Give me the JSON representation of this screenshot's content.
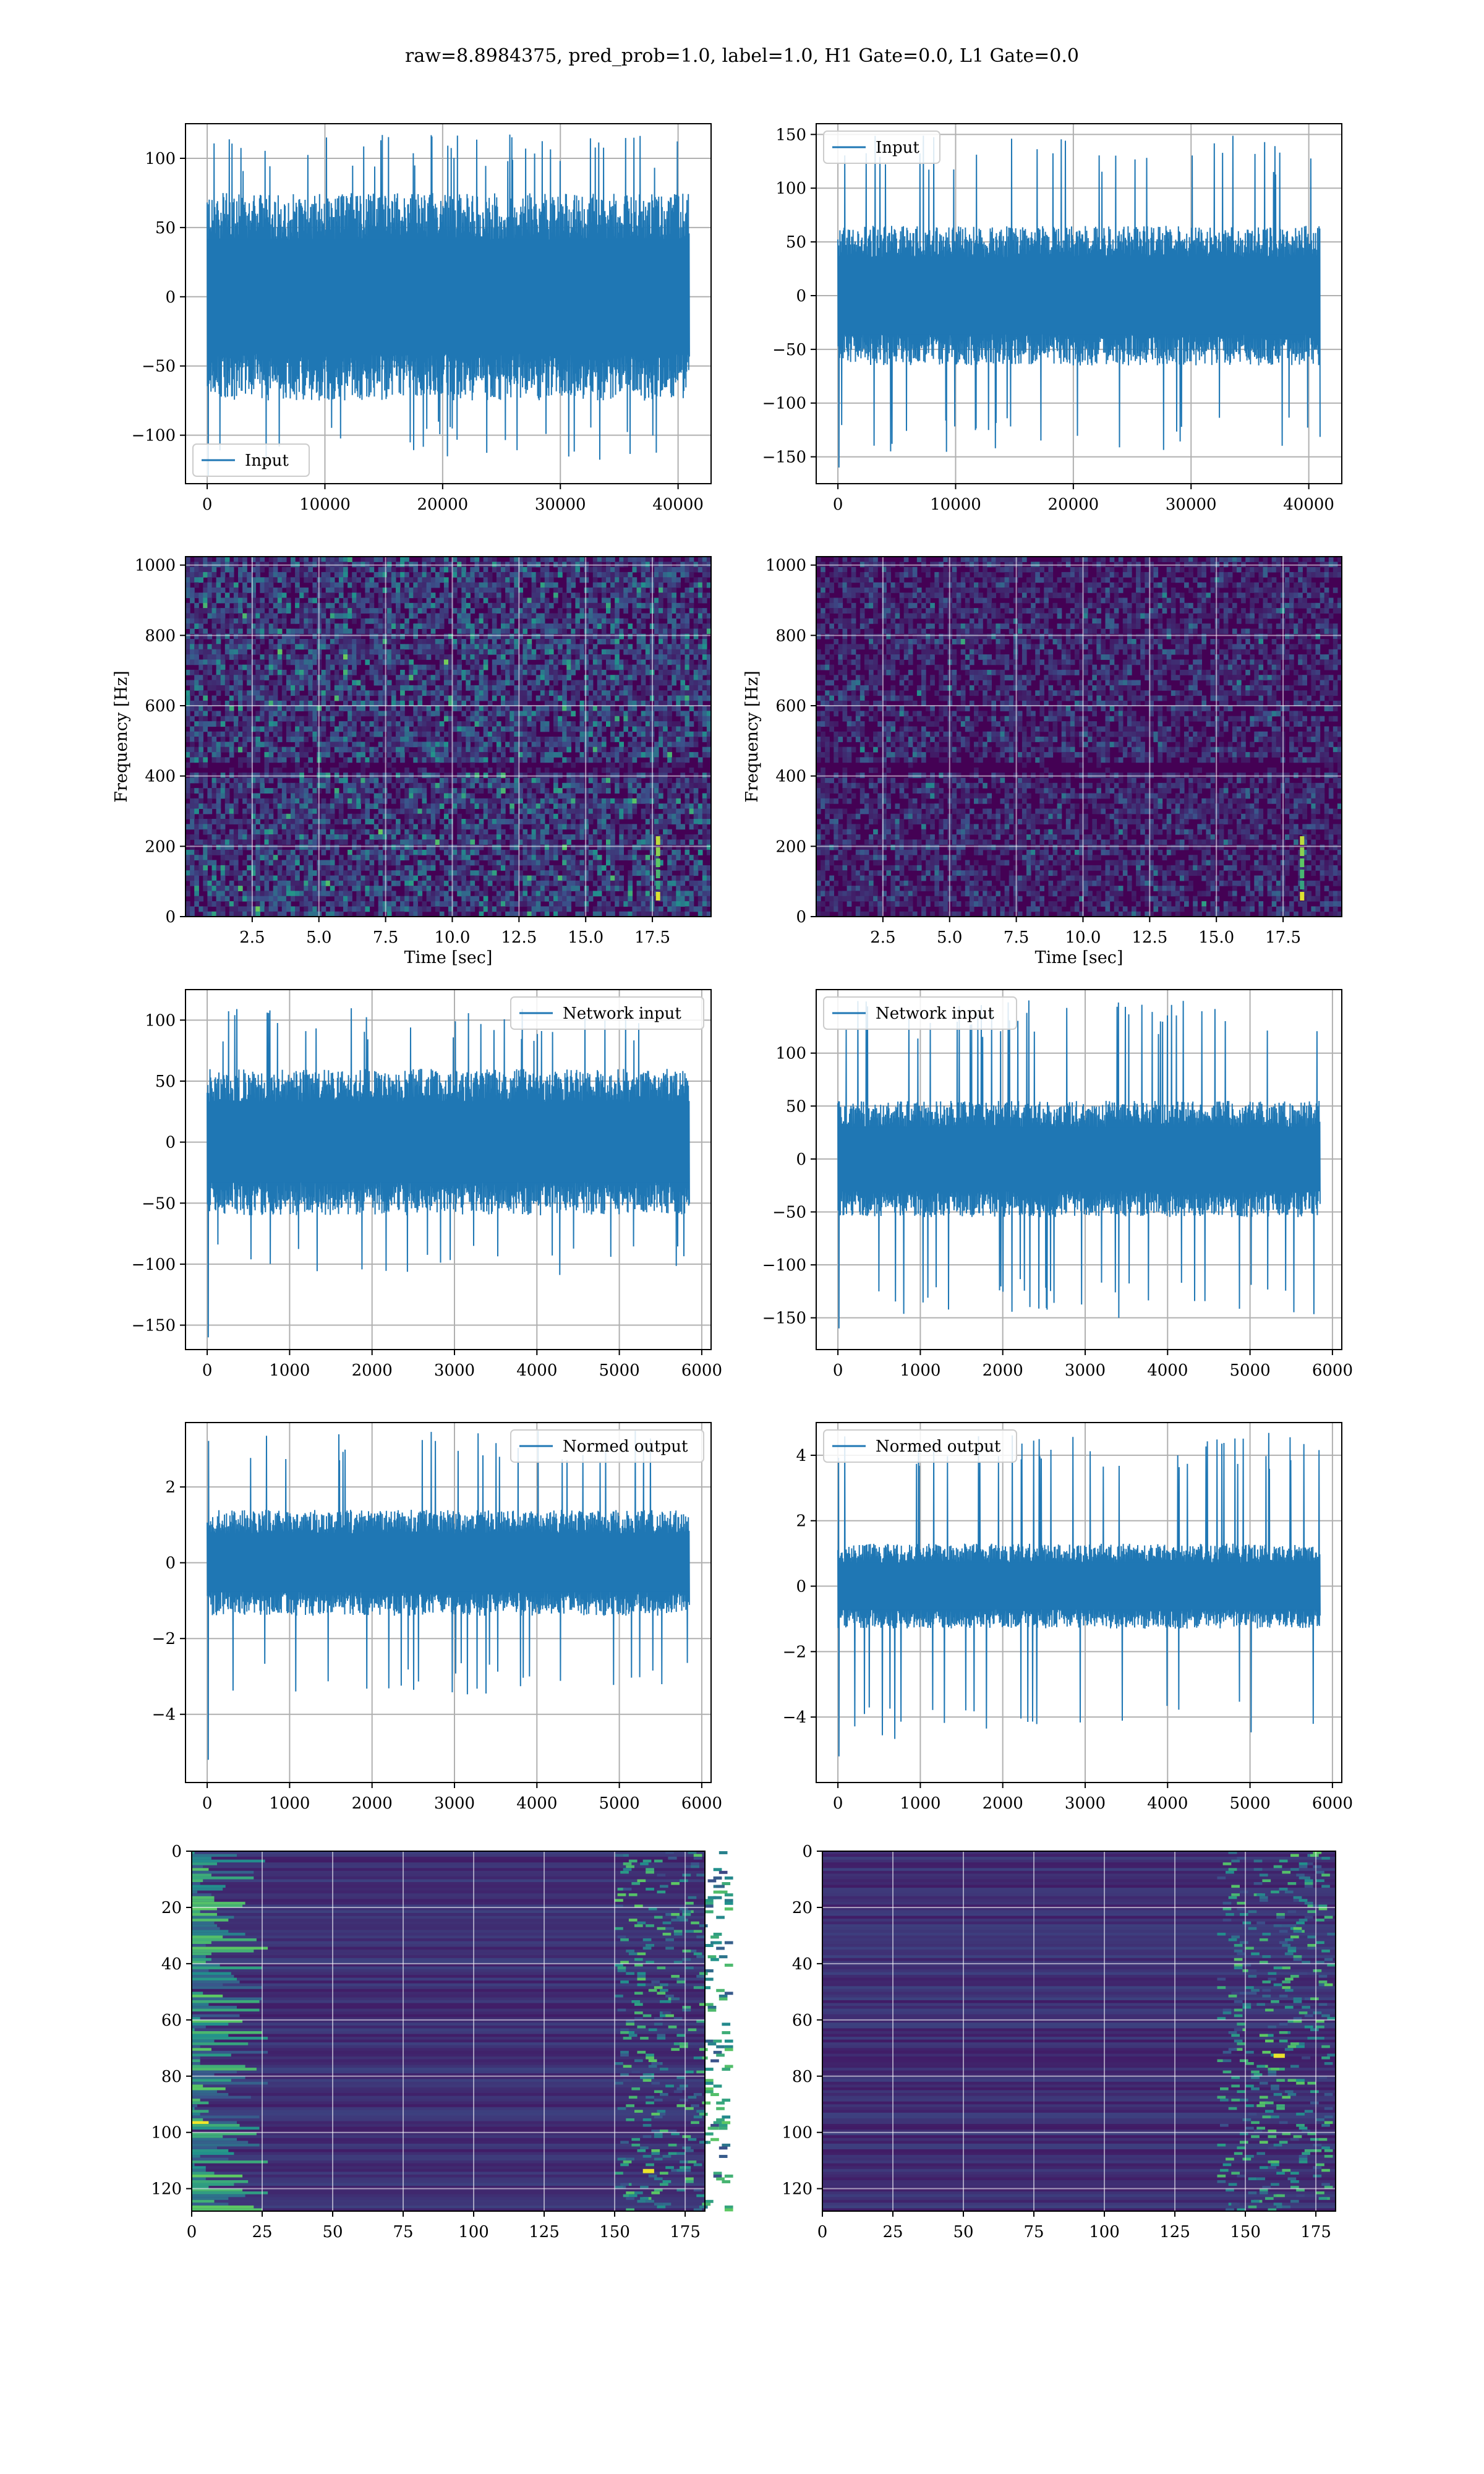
{
  "figure": {
    "title": "raw=8.8984375, pred_prob=1.0, label=1.0, H1 Gate=0.0, L1 Gate=0.0"
  },
  "colors": {
    "series": "#1f77b4",
    "viridis": [
      "#440154",
      "#3b528b",
      "#21918c",
      "#5ec962",
      "#fde725"
    ]
  },
  "chart_data": [
    {
      "id": "row1-left",
      "type": "line",
      "legend": "Input",
      "legend_loc": "lower-left",
      "x_range": [
        0,
        40960
      ],
      "ylim": [
        -135,
        125
      ],
      "xticks": [
        0,
        10000,
        20000,
        30000,
        40000
      ],
      "xtick_labels": [
        "0",
        "10000",
        "20000",
        "30000",
        "40000"
      ],
      "yticks": [
        -100,
        -50,
        0,
        50,
        100
      ],
      "ytick_labels": [
        "−100",
        "−50",
        "0",
        "50",
        "100"
      ],
      "envelope_core": 75,
      "envelope_spike": 120,
      "envelope_min": -130,
      "xlabel": "",
      "ylabel": "",
      "grid": true
    },
    {
      "id": "row1-right",
      "type": "line",
      "legend": "Input",
      "legend_loc": "upper-left",
      "x_range": [
        0,
        40960
      ],
      "ylim": [
        -175,
        160
      ],
      "xticks": [
        0,
        10000,
        20000,
        30000,
        40000
      ],
      "xtick_labels": [
        "0",
        "10000",
        "20000",
        "30000",
        "40000"
      ],
      "yticks": [
        -150,
        -100,
        -50,
        0,
        50,
        100,
        150
      ],
      "ytick_labels": [
        "−150",
        "−100",
        "−50",
        "0",
        "50",
        "100",
        "150"
      ],
      "envelope_core": 65,
      "envelope_spike": 150,
      "envelope_min": -160,
      "xlabel": "",
      "ylabel": "",
      "grid": true
    },
    {
      "id": "row2-left",
      "type": "heatmap",
      "xlim": [
        0,
        19.7
      ],
      "ylim": [
        0,
        1024
      ],
      "xticks": [
        2.5,
        5.0,
        7.5,
        10.0,
        12.5,
        15.0,
        17.5
      ],
      "xtick_labels": [
        "2.5",
        "5.0",
        "7.5",
        "10.0",
        "12.5",
        "15.0",
        "17.5"
      ],
      "yticks": [
        0,
        200,
        400,
        600,
        800,
        1000
      ],
      "ytick_labels": [
        "0",
        "200",
        "400",
        "600",
        "800",
        "1000"
      ],
      "xlabel": "Time [sec]",
      "ylabel": "Frequency [Hz]",
      "grid": true,
      "colormap": "viridis"
    },
    {
      "id": "row2-right",
      "type": "heatmap",
      "xlim": [
        0,
        19.7
      ],
      "ylim": [
        0,
        1024
      ],
      "xticks": [
        2.5,
        5.0,
        7.5,
        10.0,
        12.5,
        15.0,
        17.5
      ],
      "xtick_labels": [
        "2.5",
        "5.0",
        "7.5",
        "10.0",
        "12.5",
        "15.0",
        "17.5"
      ],
      "yticks": [
        0,
        200,
        400,
        600,
        800,
        1000
      ],
      "ytick_labels": [
        "0",
        "200",
        "400",
        "600",
        "800",
        "1000"
      ],
      "xlabel": "Time [sec]",
      "ylabel": "Frequency [Hz]",
      "grid": true,
      "colormap": "viridis"
    },
    {
      "id": "row3-left",
      "type": "line",
      "legend": "Network input",
      "legend_loc": "upper-right",
      "x_range": [
        0,
        5850
      ],
      "ylim": [
        -170,
        125
      ],
      "xticks": [
        0,
        1000,
        2000,
        3000,
        4000,
        5000,
        6000
      ],
      "xtick_labels": [
        "0",
        "1000",
        "2000",
        "3000",
        "4000",
        "5000",
        "6000"
      ],
      "yticks": [
        -150,
        -100,
        -50,
        0,
        50,
        100
      ],
      "ytick_labels": [
        "−150",
        "−100",
        "−50",
        "0",
        "50",
        "100"
      ],
      "envelope_core": 60,
      "envelope_spike": 110,
      "envelope_min": -160,
      "xlabel": "",
      "ylabel": "",
      "grid": true
    },
    {
      "id": "row3-right",
      "type": "line",
      "legend": "Network input",
      "legend_loc": "upper-left",
      "x_range": [
        0,
        5850
      ],
      "ylim": [
        -180,
        160
      ],
      "xticks": [
        0,
        1000,
        2000,
        3000,
        4000,
        5000,
        6000
      ],
      "xtick_labels": [
        "0",
        "1000",
        "2000",
        "3000",
        "4000",
        "5000",
        "6000"
      ],
      "yticks": [
        -150,
        -100,
        -50,
        0,
        50,
        100
      ],
      "ytick_labels": [
        "−150",
        "−100",
        "−50",
        "0",
        "50",
        "100"
      ],
      "envelope_core": 55,
      "envelope_spike": 150,
      "envelope_min": -160,
      "xlabel": "",
      "ylabel": "",
      "grid": true
    },
    {
      "id": "row4-left",
      "type": "line",
      "legend": "Normed output",
      "legend_loc": "upper-right",
      "x_range": [
        0,
        5850
      ],
      "ylim": [
        -5.8,
        3.7
      ],
      "xticks": [
        0,
        1000,
        2000,
        3000,
        4000,
        5000,
        6000
      ],
      "xtick_labels": [
        "0",
        "1000",
        "2000",
        "3000",
        "4000",
        "5000",
        "6000"
      ],
      "yticks": [
        -4,
        -2,
        0,
        2
      ],
      "ytick_labels": [
        "−4",
        "−2",
        "0",
        "2"
      ],
      "envelope_core": 1.4,
      "envelope_spike": 3.5,
      "envelope_min": -5.2,
      "xlabel": "",
      "ylabel": "",
      "grid": true
    },
    {
      "id": "row4-right",
      "type": "line",
      "legend": "Normed output",
      "legend_loc": "upper-left",
      "x_range": [
        0,
        5850
      ],
      "ylim": [
        -6.0,
        5.0
      ],
      "xticks": [
        0,
        1000,
        2000,
        3000,
        4000,
        5000,
        6000
      ],
      "xtick_labels": [
        "0",
        "1000",
        "2000",
        "3000",
        "4000",
        "5000",
        "6000"
      ],
      "yticks": [
        -4,
        -2,
        0,
        2,
        4
      ],
      "ytick_labels": [
        "−4",
        "−2",
        "0",
        "2",
        "4"
      ],
      "envelope_core": 1.3,
      "envelope_spike": 4.7,
      "envelope_min": -5.2,
      "xlabel": "",
      "ylabel": "",
      "grid": true
    },
    {
      "id": "row5-left",
      "type": "heatmap",
      "xlim": [
        0,
        182
      ],
      "ylim": [
        128,
        0
      ],
      "xticks": [
        0,
        25,
        50,
        75,
        100,
        125,
        150,
        175
      ],
      "xtick_labels": [
        "0",
        "25",
        "50",
        "75",
        "100",
        "125",
        "150",
        "175"
      ],
      "yticks": [
        0,
        20,
        40,
        60,
        80,
        100,
        120
      ],
      "ytick_labels": [
        "0",
        "20",
        "40",
        "60",
        "80",
        "100",
        "120"
      ],
      "xlabel": "",
      "ylabel": "",
      "grid": true,
      "colormap": "viridis"
    },
    {
      "id": "row5-right",
      "type": "heatmap",
      "xlim": [
        0,
        182
      ],
      "ylim": [
        128,
        0
      ],
      "xticks": [
        0,
        25,
        50,
        75,
        100,
        125,
        150,
        175
      ],
      "xtick_labels": [
        "0",
        "25",
        "50",
        "75",
        "100",
        "125",
        "150",
        "175"
      ],
      "yticks": [
        0,
        20,
        40,
        60,
        80,
        100,
        120
      ],
      "ytick_labels": [
        "0",
        "20",
        "40",
        "60",
        "80",
        "100",
        "120"
      ],
      "xlabel": "",
      "ylabel": "",
      "grid": true,
      "colormap": "viridis"
    }
  ]
}
